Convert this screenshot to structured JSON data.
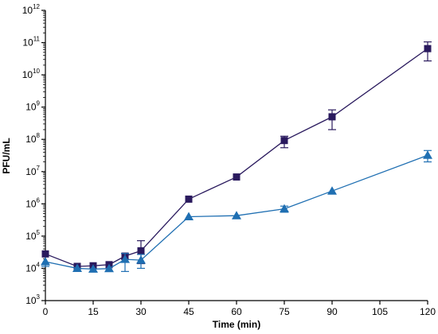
{
  "chart_data": {
    "type": "scatter",
    "title": "",
    "xlabel": "Time (min)",
    "ylabel": "PFU/mL",
    "y_scale": "log10",
    "xlim": [
      0,
      120
    ],
    "ylim": [
      1000,
      1000000000000
    ],
    "x_ticks": [
      0,
      15,
      30,
      45,
      60,
      75,
      90,
      105,
      120
    ],
    "x_tick_labels": [
      "0",
      "15",
      "30",
      "45",
      "60",
      "75",
      "90",
      "105",
      "120"
    ],
    "y_tick_base": "10",
    "y_tick_exponents": [
      "3",
      "4",
      "5",
      "6",
      "7",
      "8",
      "9",
      "10",
      "11",
      "12"
    ],
    "grid": false,
    "legend": "none",
    "series": [
      {
        "marker": "square",
        "color": "#2a1a5e",
        "x": [
          0,
          10,
          15,
          20,
          25,
          30,
          45,
          60,
          75,
          90,
          120
        ],
        "y": [
          28000,
          11500,
          12000,
          13000,
          24000,
          35000,
          1400000,
          6800000,
          92000000,
          500000000,
          65000000000
        ],
        "err_low": [
          null,
          null,
          null,
          null,
          19000,
          14000,
          null,
          null,
          55000000,
          200000000,
          27000000000
        ],
        "err_high": [
          null,
          null,
          null,
          null,
          29000,
          72000,
          null,
          null,
          125000000,
          820000000,
          105000000000
        ]
      },
      {
        "marker": "triangle",
        "color": "#1f6fb2",
        "x": [
          0,
          10,
          15,
          20,
          25,
          30,
          45,
          60,
          75,
          90,
          120
        ],
        "y": [
          16000,
          10000,
          9500,
          9800,
          19000,
          18000,
          400000,
          430000,
          700000,
          2500000,
          32000000
        ],
        "err_low": [
          11500,
          null,
          null,
          null,
          8000,
          10000,
          null,
          null,
          550000,
          null,
          20000000
        ],
        "err_high": [
          null,
          null,
          null,
          null,
          29000,
          27000,
          null,
          null,
          850000,
          null,
          45000000
        ]
      }
    ]
  }
}
